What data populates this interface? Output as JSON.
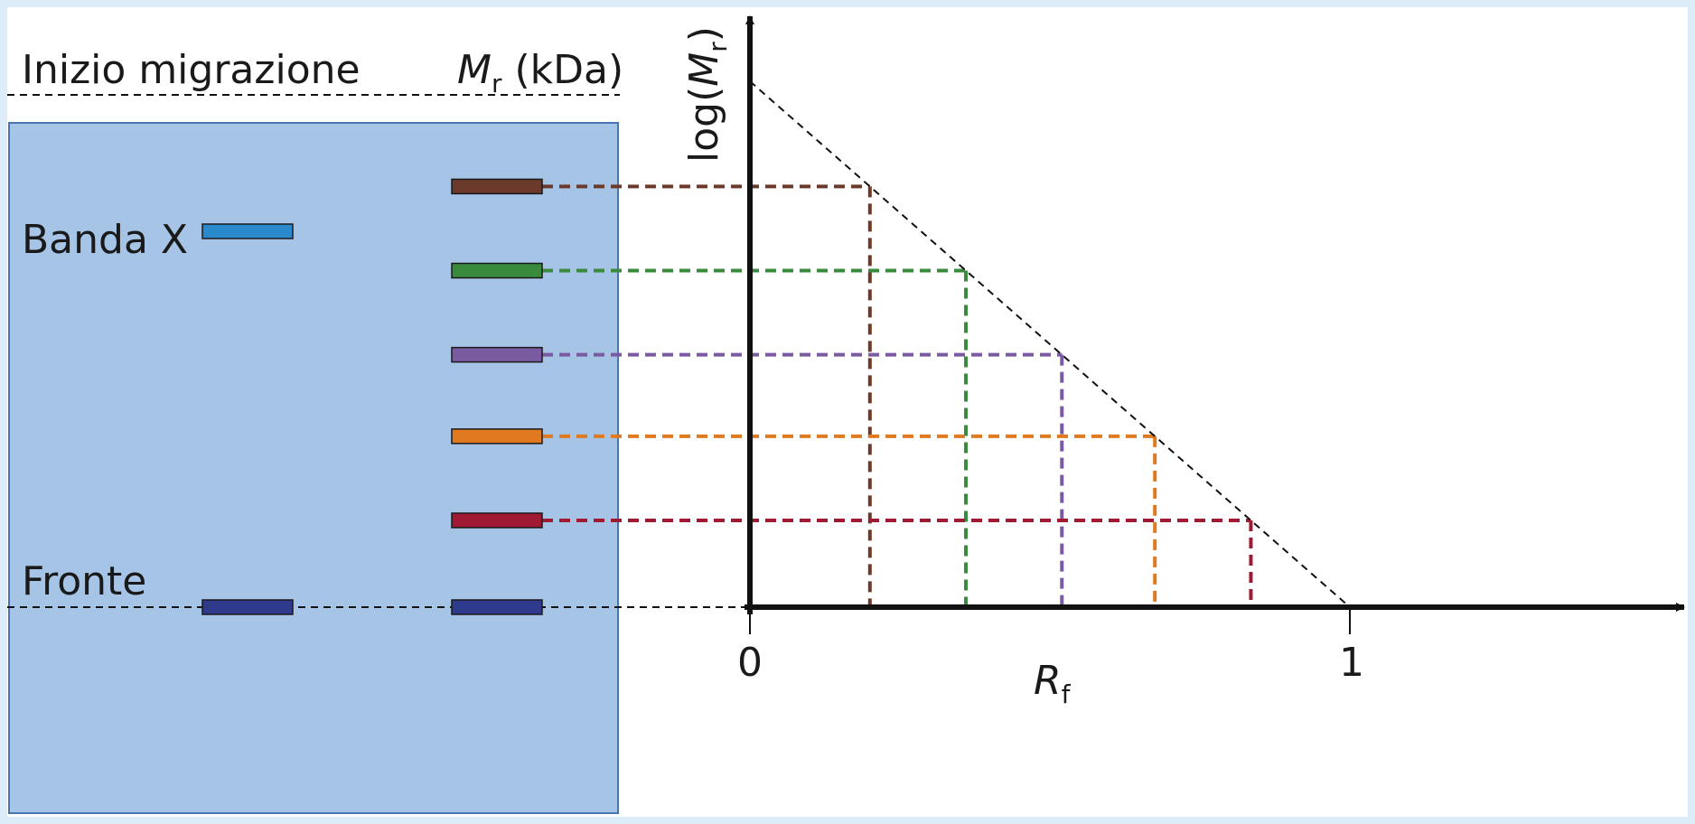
{
  "labels": {
    "start": "Inizio migrazione",
    "mr_symbol": "M",
    "mr_sub": "r",
    "mr_unit": " (kDa)",
    "band_x": "Banda X",
    "front": "Fronte",
    "y_axis_prefix": "log(",
    "y_axis_symbol": "M",
    "y_axis_sub": "r",
    "y_axis_suffix": ")",
    "x_axis_symbol": "R",
    "x_axis_sub": "f",
    "x_tick_0": "0",
    "x_tick_1": "1"
  },
  "colors": {
    "gel": "#a6c4e6",
    "gel_border": "#4a74b0",
    "band_x": "#2a88cc",
    "front_band": "#2e3a8c",
    "marker_1": "#6b3a2a",
    "marker_2": "#3a8a3e",
    "marker_3": "#7a5aa0",
    "marker_4": "#e07a20",
    "marker_5": "#a01a34"
  },
  "markers": [
    {
      "color_key": "marker_1",
      "rf": 0.2
    },
    {
      "color_key": "marker_2",
      "rf": 0.36
    },
    {
      "color_key": "marker_3",
      "rf": 0.52
    },
    {
      "color_key": "marker_4",
      "rf": 0.675
    },
    {
      "color_key": "marker_5",
      "rf": 0.835
    }
  ]
}
